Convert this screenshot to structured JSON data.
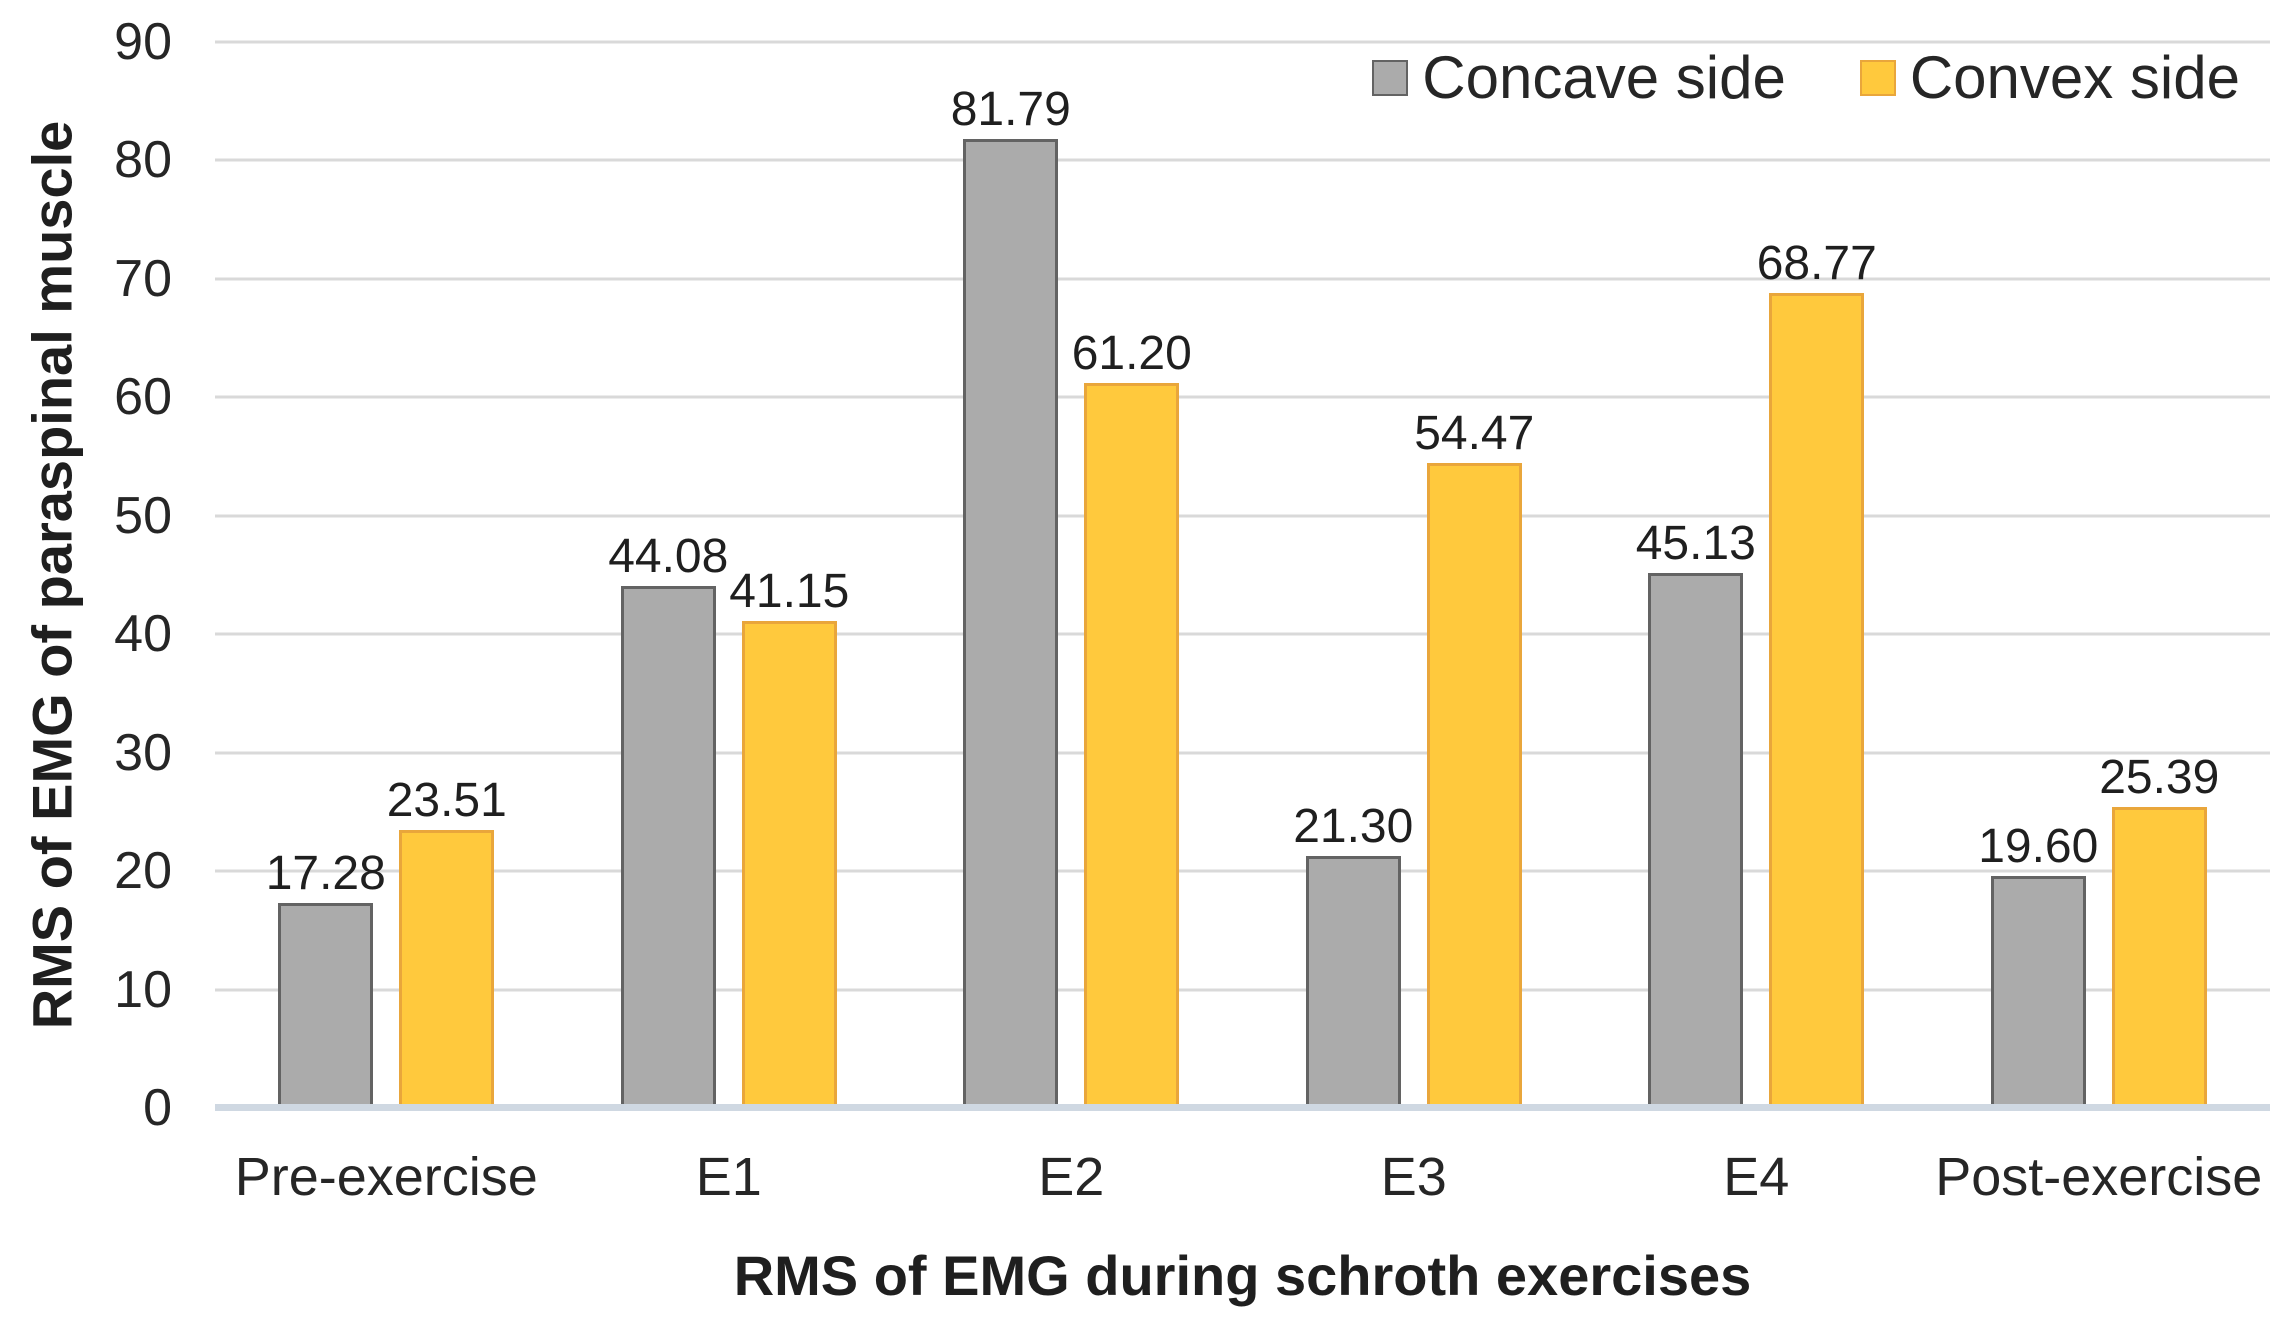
{
  "page": {
    "background": "#ffffff"
  },
  "chart_data": {
    "type": "bar",
    "title": "",
    "categories": [
      "Pre-exercise",
      "E1",
      "E2",
      "E3",
      "E4",
      "Post-exercise"
    ],
    "series": [
      {
        "name": "Concave side",
        "fill": "#ABABAB",
        "stroke": "#636363",
        "values": [
          17.28,
          44.08,
          81.79,
          21.3,
          45.13,
          19.6
        ],
        "labels": [
          "17.28",
          "44.08",
          "81.79",
          "21.30",
          "45.13",
          "19.60"
        ]
      },
      {
        "name": "Convex side",
        "fill": "#FFC93D",
        "stroke": "#E9A63B",
        "values": [
          23.51,
          41.15,
          61.2,
          54.47,
          68.77,
          25.39
        ],
        "labels": [
          "23.51",
          "41.15",
          "61.20",
          "54.47",
          "68.77",
          "25.39"
        ]
      }
    ],
    "xlabel": "RMS of EMG during schroth exercises",
    "ylabel": "RMS of EMG of paraspinal muscle",
    "ylim": [
      0,
      90
    ],
    "ytick_step": 10,
    "yticks": [
      "90",
      "80",
      "70",
      "60",
      "50",
      "40",
      "30",
      "20",
      "10",
      "0"
    ],
    "grid": "horizontal",
    "gridline_color": "#D9D9D9",
    "baseline_color": "#CFD8E2",
    "legend_position": "top-right",
    "value_label_color": "#1F1F1F"
  }
}
